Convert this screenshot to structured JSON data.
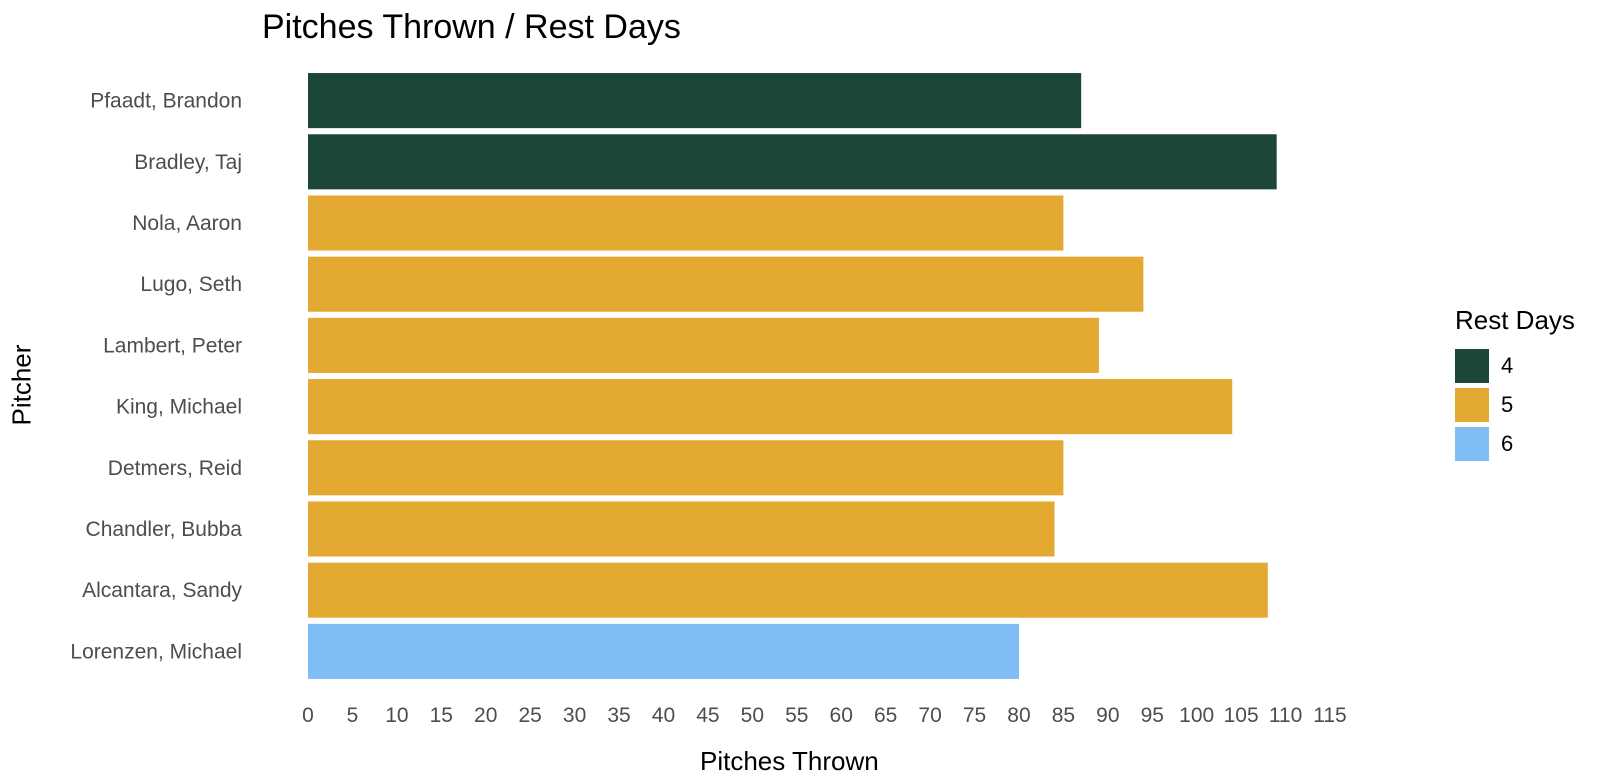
{
  "chart_data": {
    "type": "bar",
    "orientation": "horizontal",
    "title": "Pitches Thrown / Rest Days",
    "xlabel": "Pitches Thrown",
    "ylabel": "Pitcher",
    "xlim": [
      0,
      115
    ],
    "x_ticks": [
      0,
      5,
      10,
      15,
      20,
      25,
      30,
      35,
      40,
      45,
      50,
      55,
      60,
      65,
      70,
      75,
      80,
      85,
      90,
      95,
      100,
      105,
      110,
      115
    ],
    "grid": false,
    "legend_position": "right",
    "legend": {
      "title": "Rest Days",
      "entries": [
        {
          "label": "4",
          "color": "#1C463A"
        },
        {
          "label": "5",
          "color": "#E3A931"
        },
        {
          "label": "6",
          "color": "#7FBDF4"
        }
      ]
    },
    "bars": [
      {
        "pitcher": "Pfaadt, Brandon",
        "pitches": 87,
        "rest_days": "4"
      },
      {
        "pitcher": "Bradley, Taj",
        "pitches": 109,
        "rest_days": "4"
      },
      {
        "pitcher": "Nola, Aaron",
        "pitches": 85,
        "rest_days": "5"
      },
      {
        "pitcher": "Lugo, Seth",
        "pitches": 94,
        "rest_days": "5"
      },
      {
        "pitcher": "Lambert, Peter",
        "pitches": 89,
        "rest_days": "5"
      },
      {
        "pitcher": "King, Michael",
        "pitches": 104,
        "rest_days": "5"
      },
      {
        "pitcher": "Detmers, Reid",
        "pitches": 85,
        "rest_days": "5"
      },
      {
        "pitcher": "Chandler, Bubba",
        "pitches": 84,
        "rest_days": "5"
      },
      {
        "pitcher": "Alcantara, Sandy",
        "pitches": 108,
        "rest_days": "5"
      },
      {
        "pitcher": "Lorenzen, Michael",
        "pitches": 80,
        "rest_days": "6"
      }
    ]
  }
}
